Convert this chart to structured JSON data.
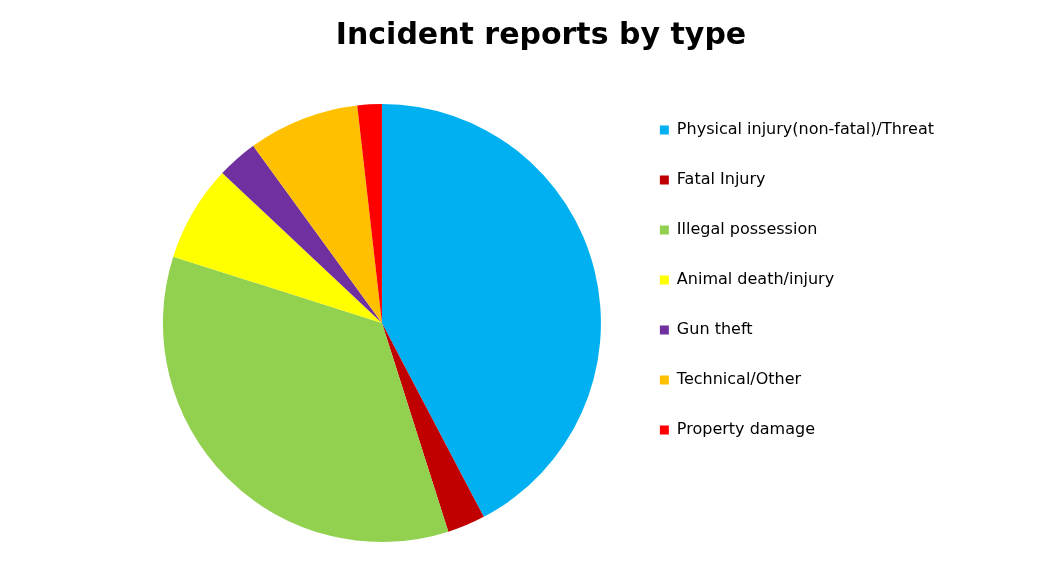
{
  "chart_data": {
    "type": "pie",
    "title": "Incident reports by type",
    "categories": [
      "Physical injury(non-fatal)/Threat",
      "Fatal Injury",
      "Illegal possession",
      "Animal death/injury",
      "Gun theft",
      "Technical/Other",
      "Property damage"
    ],
    "values": [
      42.3,
      2.8,
      34.8,
      7.1,
      3.0,
      8.2,
      1.8
    ],
    "colors": [
      "#00b0f0",
      "#c00000",
      "#92d050",
      "#ffff00",
      "#7030a0",
      "#ffc000",
      "#ff0000"
    ],
    "legend": "right"
  }
}
